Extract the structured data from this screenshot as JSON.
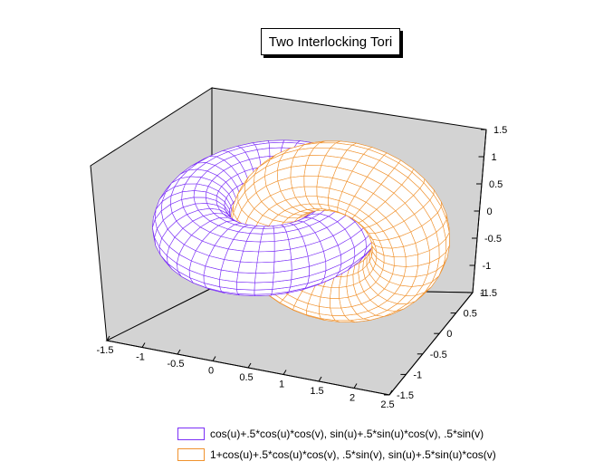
{
  "chart_data": {
    "type": "surface3d",
    "title": "Two Interlocking Tori",
    "x_ticks": [
      "-1.5",
      "-1",
      "-0.5",
      "0",
      "0.5",
      "1",
      "1.5",
      "2",
      "2.5"
    ],
    "y_ticks": [
      "-1.5",
      "-1",
      "-0.5",
      "0",
      "0.5",
      "1"
    ],
    "z_ticks": [
      "-1.5",
      "-1",
      "-0.5",
      "0",
      "0.5",
      "1",
      "1.5"
    ],
    "xlim": [
      -1.5,
      2.5
    ],
    "ylim": [
      -1.5,
      1
    ],
    "zlim": [
      -1.5,
      1.5
    ],
    "grid": false,
    "legend_position": "bottom",
    "series": [
      {
        "name": "cos(u)+.5*cos(u)*cos(v), sin(u)+.5*sin(u)*cos(v), .5*sin(v)",
        "color": "#7b2ff7",
        "x_expr": "cos(u)+.5*cos(u)*cos(v)",
        "y_expr": "sin(u)+.5*sin(u)*cos(v)",
        "z_expr": ".5*sin(v)"
      },
      {
        "name": "1+cos(u)+.5*cos(u)*cos(v), .5*sin(v), sin(u)+.5*sin(u)*cos(v)",
        "color": "#f0922e",
        "x_expr": "1+cos(u)+.5*cos(u)*cos(v)",
        "y_expr": ".5*sin(v)",
        "z_expr": "sin(u)+.5*sin(u)*cos(v)"
      }
    ]
  }
}
